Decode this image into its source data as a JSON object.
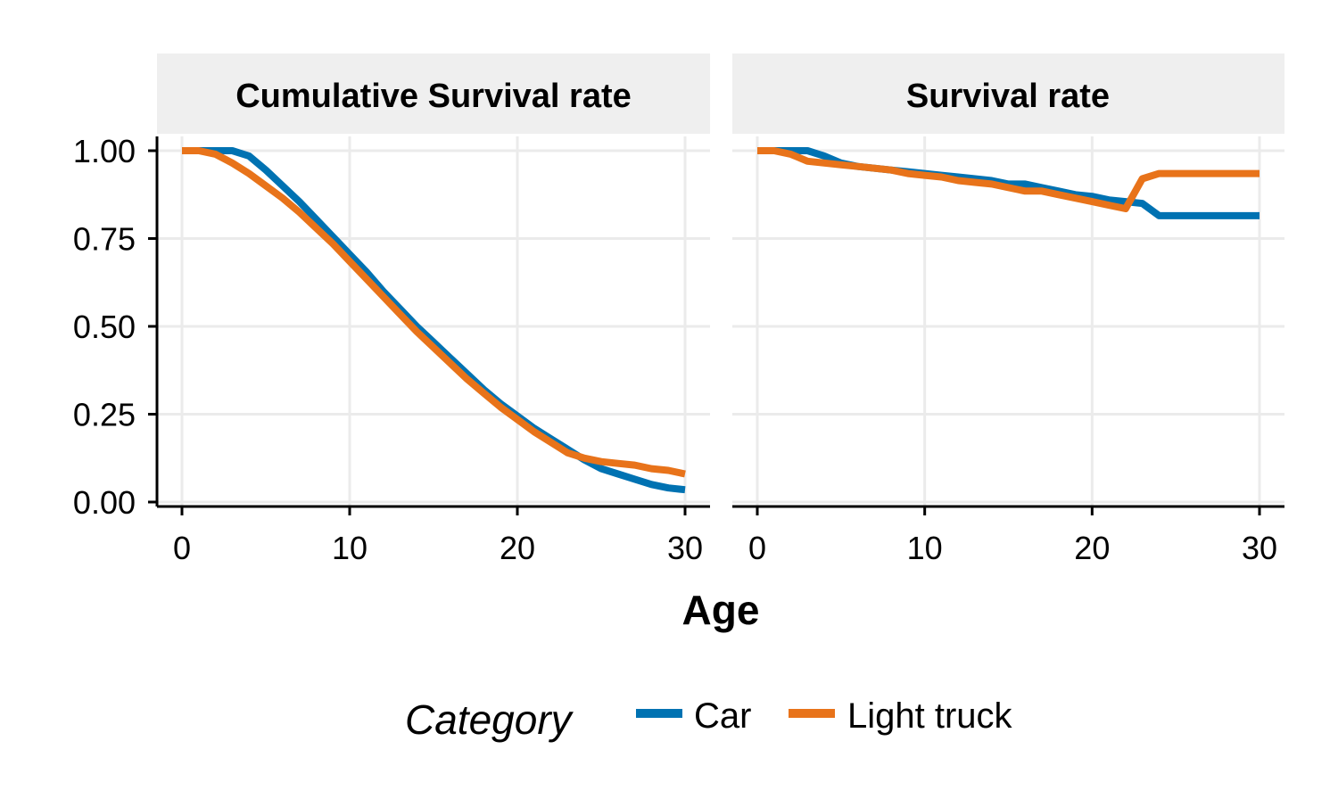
{
  "chart_data": [
    {
      "type": "line",
      "title": "Cumulative Survival rate",
      "xlabel": "Age",
      "ylabel": "",
      "xlim": [
        0,
        30
      ],
      "ylim": [
        0,
        1
      ],
      "x_ticks": [
        0,
        10,
        20,
        30
      ],
      "y_ticks": [
        "0.00",
        "0.25",
        "0.50",
        "0.75",
        "1.00"
      ],
      "y_tick_values": [
        0,
        0.25,
        0.5,
        0.75,
        1.0
      ],
      "grid": true,
      "series": [
        {
          "name": "Car",
          "color": "#0072b2",
          "x": [
            0,
            1,
            2,
            3,
            4,
            5,
            6,
            7,
            8,
            9,
            10,
            11,
            12,
            13,
            14,
            15,
            16,
            17,
            18,
            19,
            20,
            21,
            22,
            23,
            24,
            25,
            26,
            27,
            28,
            29,
            30
          ],
          "y": [
            1.0,
            1.0,
            1.0,
            1.0,
            0.985,
            0.945,
            0.9,
            0.855,
            0.805,
            0.755,
            0.705,
            0.655,
            0.6,
            0.55,
            0.5,
            0.455,
            0.41,
            0.365,
            0.32,
            0.28,
            0.245,
            0.21,
            0.18,
            0.15,
            0.12,
            0.095,
            0.08,
            0.065,
            0.05,
            0.04,
            0.035
          ]
        },
        {
          "name": "Light truck",
          "color": "#e8731a",
          "x": [
            0,
            1,
            2,
            3,
            4,
            5,
            6,
            7,
            8,
            9,
            10,
            11,
            12,
            13,
            14,
            15,
            16,
            17,
            18,
            19,
            20,
            21,
            22,
            23,
            24,
            25,
            26,
            27,
            28,
            29,
            30
          ],
          "y": [
            1.0,
            1.0,
            0.99,
            0.965,
            0.935,
            0.9,
            0.865,
            0.825,
            0.78,
            0.735,
            0.685,
            0.635,
            0.585,
            0.535,
            0.485,
            0.44,
            0.395,
            0.35,
            0.31,
            0.27,
            0.235,
            0.2,
            0.17,
            0.14,
            0.125,
            0.115,
            0.11,
            0.105,
            0.095,
            0.09,
            0.08
          ]
        }
      ]
    },
    {
      "type": "line",
      "title": "Survival rate",
      "xlabel": "Age",
      "ylabel": "",
      "xlim": [
        0,
        30
      ],
      "ylim": [
        0,
        1
      ],
      "x_ticks": [
        0,
        10,
        20,
        30
      ],
      "grid": true,
      "series": [
        {
          "name": "Car",
          "color": "#0072b2",
          "x": [
            0,
            1,
            2,
            3,
            4,
            5,
            6,
            7,
            8,
            9,
            10,
            11,
            12,
            13,
            14,
            15,
            16,
            17,
            18,
            19,
            20,
            21,
            22,
            23,
            24,
            25,
            26,
            27,
            28,
            29,
            30
          ],
          "y": [
            1.0,
            1.0,
            1.0,
            1.0,
            0.985,
            0.965,
            0.955,
            0.95,
            0.945,
            0.94,
            0.935,
            0.93,
            0.925,
            0.92,
            0.915,
            0.905,
            0.905,
            0.895,
            0.885,
            0.875,
            0.87,
            0.86,
            0.855,
            0.85,
            0.815,
            0.815,
            0.815,
            0.815,
            0.815,
            0.815,
            0.815
          ]
        },
        {
          "name": "Light truck",
          "color": "#e8731a",
          "x": [
            0,
            1,
            2,
            3,
            4,
            5,
            6,
            7,
            8,
            9,
            10,
            11,
            12,
            13,
            14,
            15,
            16,
            17,
            18,
            19,
            20,
            21,
            22,
            23,
            24,
            25,
            26,
            27,
            28,
            29,
            30
          ],
          "y": [
            1.0,
            1.0,
            0.99,
            0.97,
            0.965,
            0.96,
            0.955,
            0.95,
            0.945,
            0.935,
            0.93,
            0.925,
            0.915,
            0.91,
            0.905,
            0.895,
            0.885,
            0.885,
            0.875,
            0.865,
            0.855,
            0.845,
            0.835,
            0.92,
            0.935,
            0.935,
            0.935,
            0.935,
            0.935,
            0.935,
            0.935
          ]
        }
      ]
    }
  ],
  "legend": {
    "title": "Category",
    "items": [
      {
        "label": "Car",
        "color": "#0072b2"
      },
      {
        "label": "Light truck",
        "color": "#e8731a"
      }
    ],
    "position": "bottom"
  }
}
